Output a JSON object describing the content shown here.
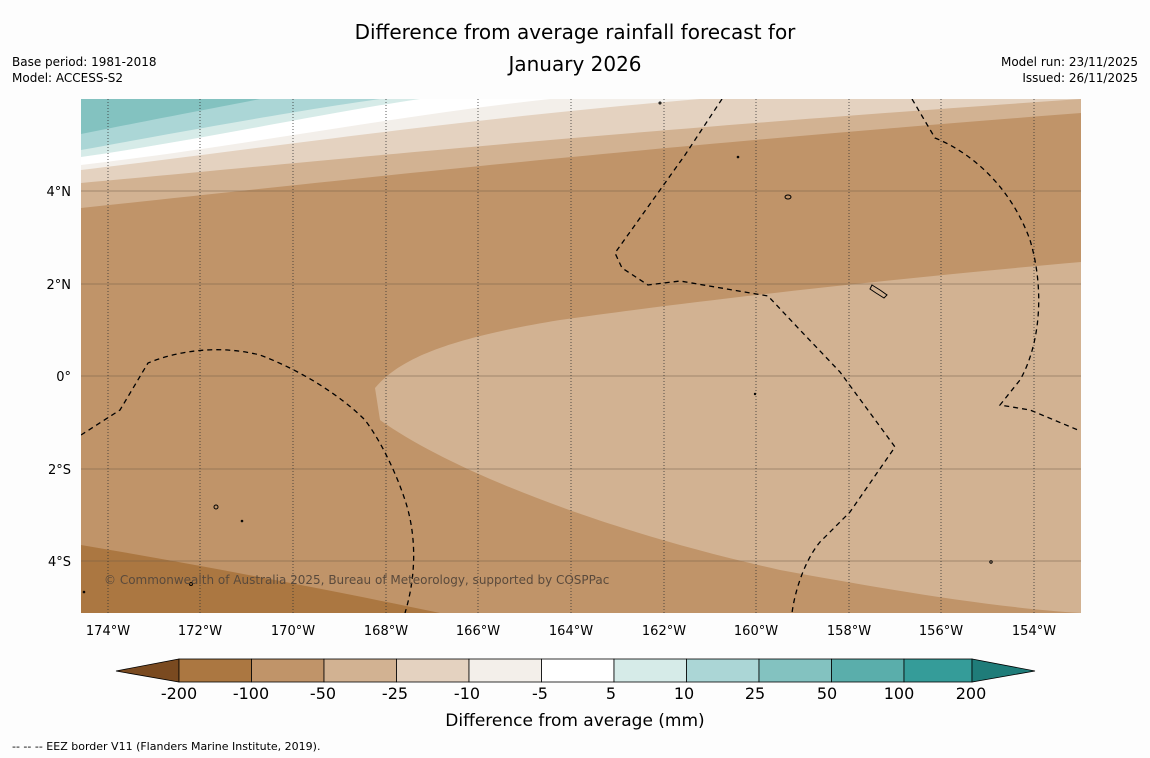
{
  "title_line1": "Difference from average rainfall forecast for",
  "title_line2": "January 2026",
  "base_period": "Base period: 1981-2018",
  "model": "Model: ACCESS-S2",
  "model_run": "Model run: 23/11/2025",
  "issued": "Issued: 26/11/2025",
  "copyright": "© Commonwealth of Australia 2025, Bureau of Meteorology, supported by COSPPac",
  "lat_labels": [
    "4°N",
    "2°N",
    "0°",
    "2°S",
    "4°S"
  ],
  "lon_labels": [
    "174°W",
    "172°W",
    "170°W",
    "168°W",
    "166°W",
    "164°W",
    "162°W",
    "160°W",
    "158°W",
    "156°W",
    "154°W"
  ],
  "colorbar": {
    "ticks": [
      "-200",
      "-100",
      "-50",
      "-25",
      "-10",
      "-5",
      "5",
      "10",
      "25",
      "50",
      "100",
      "200"
    ],
    "colors": [
      "#7a4a20",
      "#ab7741",
      "#c09469",
      "#d2b292",
      "#e4d2c0",
      "#f3efea",
      "#ffffff",
      "#d6ebe8",
      "#abd6d6",
      "#83c2c0",
      "#5aaeab",
      "#359c99",
      "#1f7c79"
    ],
    "title": "Difference from average (mm)"
  },
  "footnote": "--  --  -- EEZ border V11 (Flanders Marine Institute, 2019)."
}
